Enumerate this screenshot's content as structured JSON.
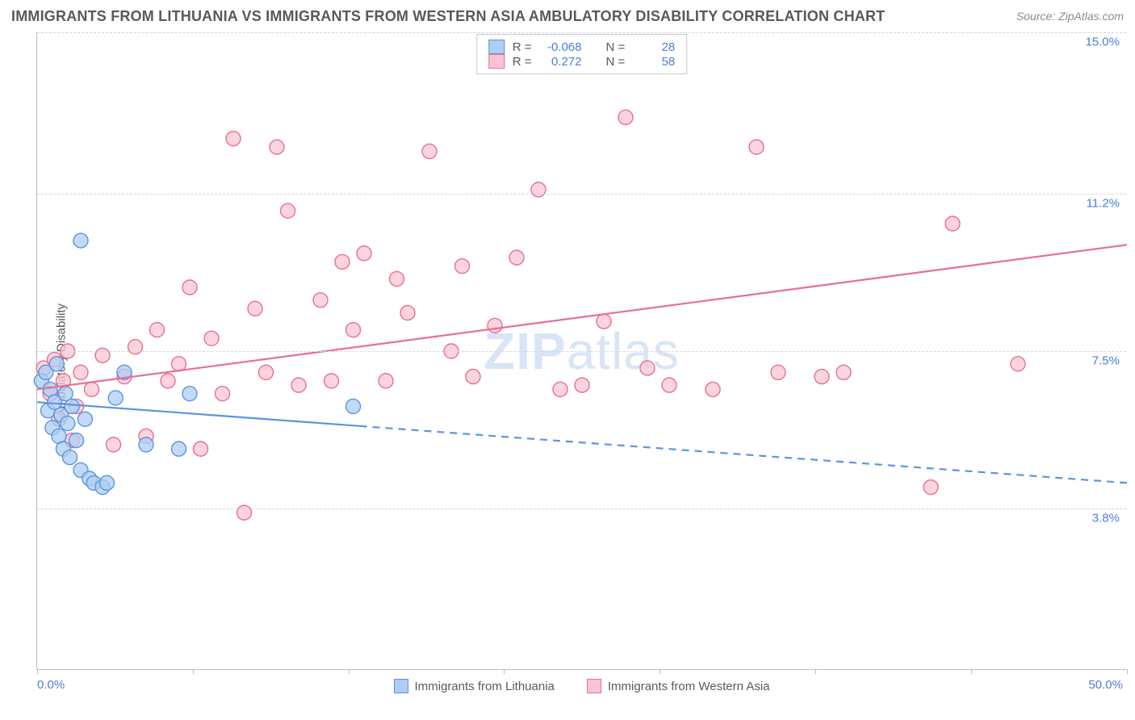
{
  "title": "IMMIGRANTS FROM LITHUANIA VS IMMIGRANTS FROM WESTERN ASIA AMBULATORY DISABILITY CORRELATION CHART",
  "source_label": "Source: ",
  "source_name": "ZipAtlas.com",
  "ylabel": "Ambulatory Disability",
  "watermark_a": "ZIP",
  "watermark_b": "atlas",
  "chart": {
    "type": "scatter",
    "xlim": [
      0,
      50
    ],
    "ylim": [
      0,
      15
    ],
    "xlim_labels": [
      "0.0%",
      "50.0%"
    ],
    "yticks": [
      3.8,
      7.5,
      11.2,
      15.0
    ],
    "ytick_labels": [
      "3.8%",
      "7.5%",
      "11.2%",
      "15.0%"
    ],
    "xtick_positions": [
      0,
      7.14,
      14.28,
      21.42,
      28.56,
      35.7,
      42.84,
      50
    ],
    "marker_radius": 9,
    "marker_stroke_width": 1.4,
    "line_width": 2.2,
    "grid_color": "#d6d8dc",
    "background_color": "#ffffff",
    "series": [
      {
        "id": "lithuania",
        "label": "Immigrants from Lithuania",
        "stroke": "#5b95e0",
        "fill": "#aecdf2",
        "r_value": "-0.068",
        "n_value": "28",
        "regression": {
          "x0": 0,
          "y0": 6.3,
          "x1": 50,
          "y1": 4.4,
          "solid_until_x": 14.8
        },
        "points": [
          [
            0.2,
            6.8
          ],
          [
            0.4,
            7.0
          ],
          [
            0.5,
            6.1
          ],
          [
            0.6,
            6.6
          ],
          [
            0.7,
            5.7
          ],
          [
            0.8,
            6.3
          ],
          [
            0.9,
            7.2
          ],
          [
            1.0,
            5.5
          ],
          [
            1.1,
            6.0
          ],
          [
            1.2,
            5.2
          ],
          [
            1.3,
            6.5
          ],
          [
            1.4,
            5.8
          ],
          [
            1.5,
            5.0
          ],
          [
            1.6,
            6.2
          ],
          [
            1.8,
            5.4
          ],
          [
            2.0,
            4.7
          ],
          [
            2.0,
            10.1
          ],
          [
            2.2,
            5.9
          ],
          [
            2.4,
            4.5
          ],
          [
            2.6,
            4.4
          ],
          [
            3.0,
            4.3
          ],
          [
            3.2,
            4.4
          ],
          [
            3.6,
            6.4
          ],
          [
            4.0,
            7.0
          ],
          [
            5.0,
            5.3
          ],
          [
            6.5,
            5.2
          ],
          [
            7.0,
            6.5
          ],
          [
            14.5,
            6.2
          ]
        ]
      },
      {
        "id": "western_asia",
        "label": "Immigrants from Western Asia",
        "stroke": "#e86f94",
        "fill": "#f9c5d3",
        "r_value": "0.272",
        "n_value": "58",
        "regression": {
          "x0": 0,
          "y0": 6.6,
          "x1": 50,
          "y1": 10.0,
          "solid_until_x": 50
        },
        "points": [
          [
            0.3,
            7.1
          ],
          [
            0.6,
            6.5
          ],
          [
            0.8,
            7.3
          ],
          [
            1.0,
            5.9
          ],
          [
            1.2,
            6.8
          ],
          [
            1.4,
            7.5
          ],
          [
            1.6,
            5.4
          ],
          [
            1.8,
            6.2
          ],
          [
            2.0,
            7.0
          ],
          [
            2.5,
            6.6
          ],
          [
            3.0,
            7.4
          ],
          [
            3.5,
            5.3
          ],
          [
            4.0,
            6.9
          ],
          [
            4.5,
            7.6
          ],
          [
            5.0,
            5.5
          ],
          [
            5.5,
            8.0
          ],
          [
            6.0,
            6.8
          ],
          [
            6.5,
            7.2
          ],
          [
            7.0,
            9.0
          ],
          [
            7.5,
            5.2
          ],
          [
            8.0,
            7.8
          ],
          [
            8.5,
            6.5
          ],
          [
            9.0,
            12.5
          ],
          [
            9.5,
            3.7
          ],
          [
            10.0,
            8.5
          ],
          [
            10.5,
            7.0
          ],
          [
            11.0,
            12.3
          ],
          [
            11.5,
            10.8
          ],
          [
            12.0,
            6.7
          ],
          [
            13.0,
            8.7
          ],
          [
            13.5,
            6.8
          ],
          [
            14.0,
            9.6
          ],
          [
            14.5,
            8.0
          ],
          [
            15.0,
            9.8
          ],
          [
            16.0,
            6.8
          ],
          [
            16.5,
            9.2
          ],
          [
            17.0,
            8.4
          ],
          [
            18.0,
            12.2
          ],
          [
            19.0,
            7.5
          ],
          [
            19.5,
            9.5
          ],
          [
            20.0,
            6.9
          ],
          [
            21.0,
            8.1
          ],
          [
            22.0,
            9.7
          ],
          [
            23.0,
            11.3
          ],
          [
            24.0,
            6.6
          ],
          [
            25.0,
            6.7
          ],
          [
            26.0,
            8.2
          ],
          [
            27.0,
            13.0
          ],
          [
            28.0,
            7.1
          ],
          [
            29.0,
            6.7
          ],
          [
            31.0,
            6.6
          ],
          [
            33.0,
            12.3
          ],
          [
            34.0,
            7.0
          ],
          [
            36.0,
            6.9
          ],
          [
            37.0,
            7.0
          ],
          [
            41.0,
            4.3
          ],
          [
            42.0,
            10.5
          ],
          [
            45.0,
            7.2
          ]
        ]
      }
    ]
  },
  "stats_labels": {
    "r": "R =",
    "n": "N ="
  }
}
